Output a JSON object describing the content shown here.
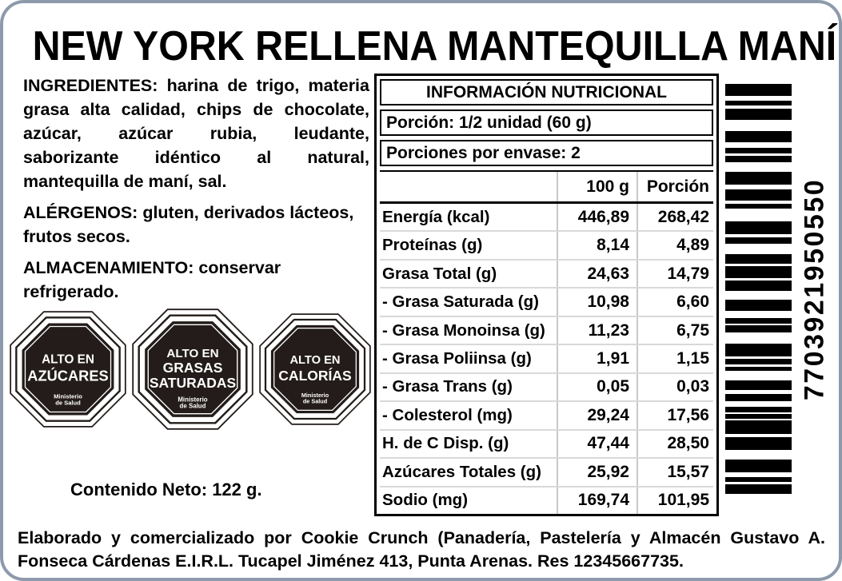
{
  "title": "NEW YORK RELLENA MANTEQUILLA MANÍ",
  "left": {
    "ingredients": "INGREDIENTES: harina de trigo, materia grasa alta calidad, chips de chocolate, azúcar, azúcar rubia, leudante, saborizante idéntico al natural, mantequilla de maní, sal.",
    "allergens": "ALÉRGENOS: gluten, derivados lácteos, frutos secos.",
    "storage": "ALMACENAMIENTO: conservar refrigerado.",
    "net_content": "Contenido Neto: 122 g."
  },
  "warning_seals": {
    "ministry_line1": "Ministerio",
    "ministry_line2": "de Salud",
    "seal_color": "#231c1a",
    "seals": [
      {
        "line1": "ALTO EN",
        "line2": "AZÚCARES"
      },
      {
        "line1": "ALTO EN",
        "line2": "GRASAS",
        "line3": "SATURADAS"
      },
      {
        "line1": "ALTO EN",
        "line2": "CALORÍAS"
      }
    ]
  },
  "nutrition_table": {
    "title": "INFORMACIÓN NUTRICIONAL",
    "portion": "Porción: 1/2 unidad (60 g)",
    "portions_per_pack": "Porciones por envase: 2",
    "col_headers": [
      "100 g",
      "Porción"
    ],
    "rows": [
      {
        "label": "Energía (kcal)",
        "per_100g": "446,89",
        "per_portion": "268,42"
      },
      {
        "label": "Proteínas (g)",
        "per_100g": "8,14",
        "per_portion": "4,89"
      },
      {
        "label": "Grasa Total (g)",
        "per_100g": "24,63",
        "per_portion": "14,79"
      },
      {
        "label": "- Grasa Saturada (g)",
        "per_100g": "10,98",
        "per_portion": "6,60"
      },
      {
        "label": "- Grasa Monoinsa (g)",
        "per_100g": "11,23",
        "per_portion": "6,75"
      },
      {
        "label": "- Grasa Poliinsa (g)",
        "per_100g": "1,91",
        "per_portion": "1,15"
      },
      {
        "label": "- Grasa Trans (g)",
        "per_100g": "0,05",
        "per_portion": "0,03"
      },
      {
        "label": "- Colesterol (mg)",
        "per_100g": "29,24",
        "per_portion": "17,56"
      },
      {
        "label": "H. de C Disp. (g)",
        "per_100g": "47,44",
        "per_portion": "28,50"
      },
      {
        "label": "Azúcares Totales (g)",
        "per_100g": "25,92",
        "per_portion": "15,57"
      },
      {
        "label": "Sodio (mg)",
        "per_100g": "169,74",
        "per_portion": "101,95"
      }
    ]
  },
  "barcode": {
    "number": "7703921950550",
    "pattern": [
      [
        13,
        5
      ],
      [
        6,
        3
      ],
      [
        12,
        13
      ],
      [
        12,
        6
      ],
      [
        6,
        3
      ],
      [
        7,
        10
      ],
      [
        14,
        5
      ],
      [
        13,
        3
      ],
      [
        5,
        14
      ],
      [
        14,
        4
      ],
      [
        7,
        11
      ],
      [
        11,
        2
      ],
      [
        13,
        3
      ],
      [
        11,
        10
      ],
      [
        12,
        8
      ],
      [
        6,
        2
      ],
      [
        8,
        12
      ],
      [
        14,
        3
      ],
      [
        6,
        2
      ],
      [
        5,
        10
      ],
      [
        11,
        4
      ],
      [
        8,
        6
      ],
      [
        6,
        2
      ],
      [
        5,
        2
      ],
      [
        15,
        3
      ],
      [
        14,
        11
      ],
      [
        14,
        5
      ],
      [
        5,
        3
      ],
      [
        10,
        0
      ]
    ]
  },
  "footer": "Elaborado y comercializado por Cookie Crunch (Panadería, Pastelería y Almacén Gustavo A. Fonseca Cárdenas E.I.R.L. Tucapel Jiménez 413, Punta Arenas. Res 12345667735."
}
